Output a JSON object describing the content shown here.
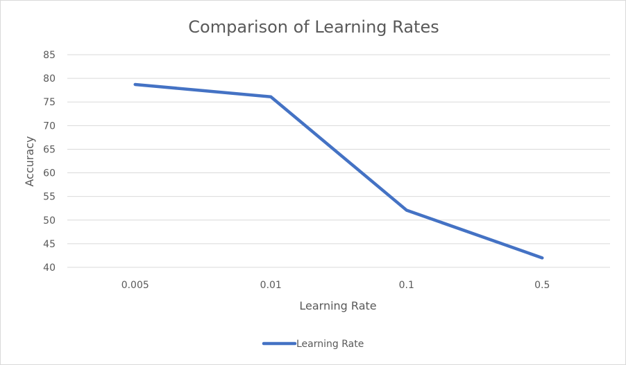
{
  "chart_data": {
    "type": "line",
    "title": "Comparison of Learning Rates",
    "xlabel": "Learning Rate",
    "ylabel": "Accuracy",
    "categories": [
      "0.005",
      "0.01",
      "0.1",
      "0.5"
    ],
    "series": [
      {
        "name": "Learning Rate",
        "values": [
          78.7,
          76.1,
          52.1,
          42.0
        ],
        "color": "#4472c4"
      }
    ],
    "ylim": [
      40,
      85
    ],
    "yticks": [
      40,
      45,
      50,
      55,
      60,
      65,
      70,
      75,
      80,
      85
    ],
    "grid": true,
    "legend_position": "bottom"
  }
}
